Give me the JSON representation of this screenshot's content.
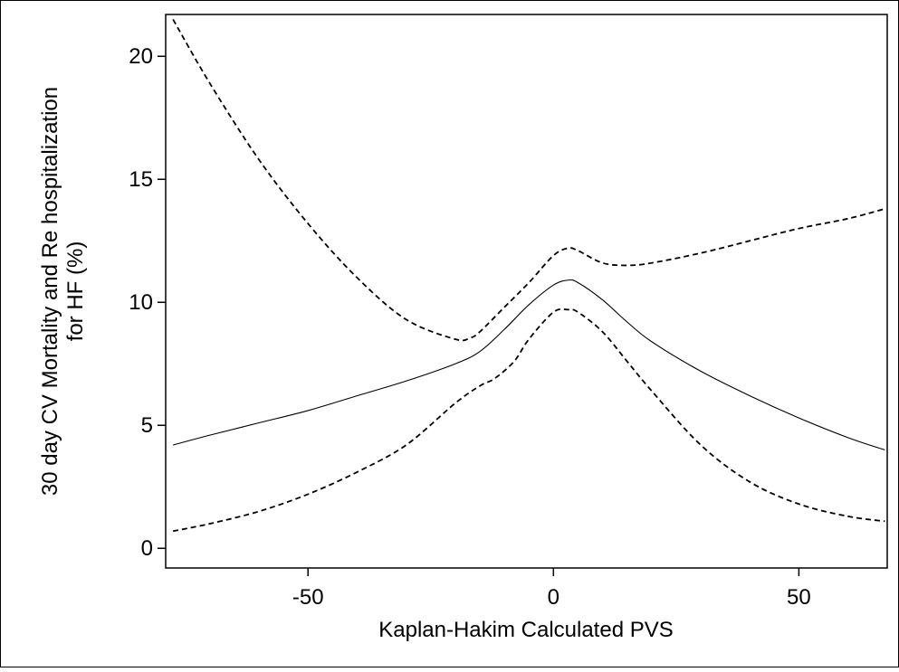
{
  "chart_data": {
    "type": "line",
    "title": "",
    "xlabel": "Kaplan-Hakim Calculated PVS",
    "ylabel_lines": [
      "30 day CV Mortality and Re hospitalization",
      "for HF (%)"
    ],
    "xlim": [
      -79,
      68
    ],
    "ylim": [
      -0.8,
      21.7
    ],
    "xticks": [
      -50,
      0,
      50
    ],
    "xtick_labels": [
      "-50",
      "0",
      "50"
    ],
    "yticks": [
      0,
      5,
      10,
      15,
      20
    ],
    "ytick_labels": [
      "0",
      "5",
      "10",
      "15",
      "20"
    ],
    "grid": false,
    "legend": "none",
    "series": [
      {
        "style": "solid",
        "color": "#000000",
        "x": [
          -77.5,
          -70,
          -60,
          -50,
          -40,
          -30,
          -20,
          -15,
          -10,
          -5,
          0,
          3,
          5,
          10,
          15,
          20,
          30,
          40,
          50,
          60,
          67.5
        ],
        "y": [
          4.2,
          4.6,
          5.1,
          5.6,
          6.2,
          6.8,
          7.5,
          8.0,
          8.9,
          9.9,
          10.7,
          10.9,
          10.8,
          10.1,
          9.2,
          8.4,
          7.2,
          6.2,
          5.3,
          4.5,
          4.0
        ]
      },
      {
        "style": "dashed",
        "color": "#000000",
        "x": [
          -77.5,
          -70,
          -60,
          -50,
          -40,
          -30,
          -20,
          -17,
          -15,
          -10,
          -5,
          0,
          3,
          5,
          10,
          15,
          20,
          30,
          40,
          50,
          60,
          67.5
        ],
        "y": [
          21.5,
          18.9,
          15.8,
          13.2,
          11.0,
          9.3,
          8.5,
          8.55,
          8.8,
          9.8,
          10.8,
          11.9,
          12.2,
          12.1,
          11.6,
          11.5,
          11.6,
          12.0,
          12.5,
          13.0,
          13.4,
          13.8
        ]
      },
      {
        "style": "dashed",
        "color": "#000000",
        "x": [
          -77.5,
          -70,
          -60,
          -50,
          -40,
          -30,
          -20,
          -15,
          -12,
          -8,
          -5,
          0,
          3,
          5,
          10,
          15,
          20,
          30,
          40,
          50,
          60,
          67.5
        ],
        "y": [
          0.7,
          1.0,
          1.5,
          2.2,
          3.1,
          4.2,
          5.9,
          6.6,
          6.9,
          7.6,
          8.5,
          9.6,
          9.7,
          9.6,
          8.8,
          7.6,
          6.4,
          4.2,
          2.7,
          1.8,
          1.3,
          1.1
        ]
      }
    ]
  }
}
